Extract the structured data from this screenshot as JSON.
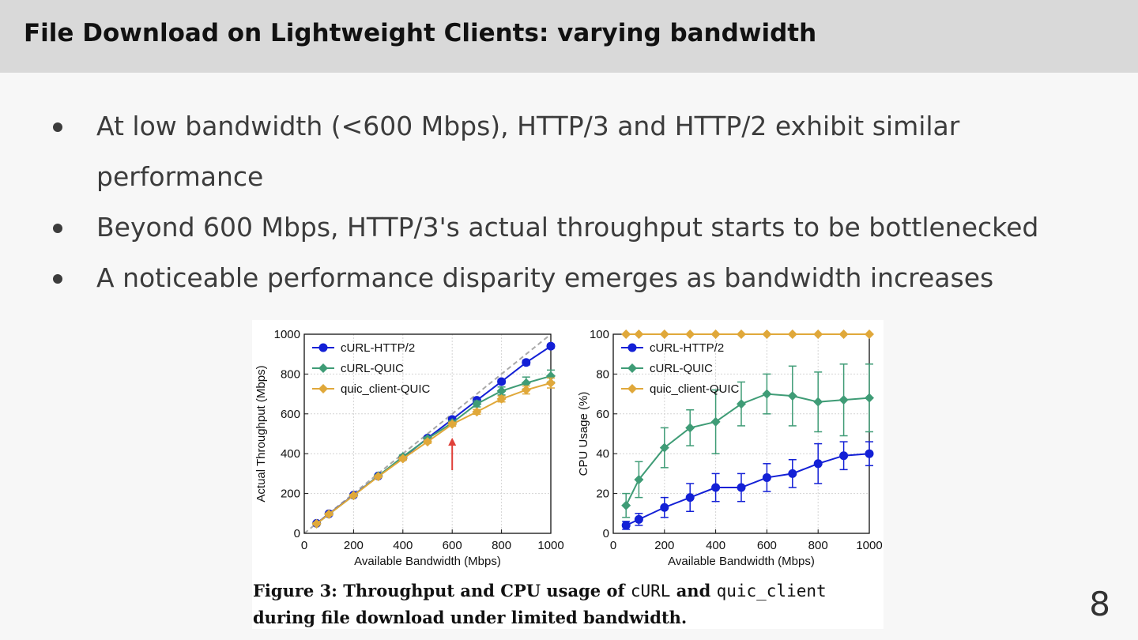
{
  "slide": {
    "title": "File Download on Lightweight Clients: varying bandwidth",
    "bullets": [
      "At low bandwidth (<600 Mbps), HTTP/3 and HTTP/2 exhibit similar performance",
      "Beyond 600 Mbps, HTTP/3's actual throughput starts to be bottlenecked",
      "A noticeable performance disparity emerges as bandwidth increases"
    ],
    "page_number": "8"
  },
  "figure": {
    "caption_part1": "Figure 3: Throughput and CPU usage of ",
    "caption_code1": "cURL",
    "caption_part2": " and ",
    "caption_code2": "quic_client",
    "caption_line2": "during file download under limited bandwidth."
  },
  "colors": {
    "http2": "#1320d6",
    "curl_quic": "#3f9c76",
    "quic_client": "#e0a83a",
    "arrow": "#e0413a"
  },
  "chart_data": [
    {
      "type": "line",
      "xlabel": "Available Bandwidth (Mbps)",
      "ylabel": "Actual Throughput (Mbps)",
      "xlim": [
        0,
        1000
      ],
      "ylim": [
        0,
        1000
      ],
      "xticks": [
        0,
        200,
        400,
        600,
        800,
        1000
      ],
      "yticks": [
        0,
        200,
        400,
        600,
        800,
        1000
      ],
      "grid": true,
      "legend_position": "top-left",
      "reference_line": "y = x (dashed gray)",
      "annotation": "red arrow at 600 Mbps",
      "annotation_x": 600,
      "x": [
        50,
        100,
        200,
        300,
        400,
        500,
        600,
        700,
        800,
        900,
        1000
      ],
      "series": [
        {
          "name": "cURL-HTTP/2",
          "marker": "circle",
          "values": [
            50,
            98,
            192,
            288,
            380,
            478,
            572,
            668,
            762,
            858,
            940
          ],
          "errors": [
            5,
            5,
            5,
            5,
            8,
            8,
            10,
            10,
            10,
            12,
            10
          ]
        },
        {
          "name": "cURL-QUIC",
          "marker": "diamond",
          "values": [
            48,
            96,
            190,
            288,
            385,
            475,
            555,
            650,
            715,
            755,
            790
          ],
          "errors": [
            5,
            5,
            5,
            5,
            8,
            8,
            10,
            15,
            20,
            30,
            30
          ]
        },
        {
          "name": "quic_client-QUIC",
          "marker": "diamond",
          "values": [
            48,
            96,
            190,
            285,
            375,
            460,
            548,
            610,
            675,
            720,
            755
          ],
          "errors": [
            5,
            5,
            5,
            5,
            8,
            8,
            10,
            12,
            15,
            20,
            25
          ]
        }
      ]
    },
    {
      "type": "line",
      "xlabel": "Available Bandwidth (Mbps)",
      "ylabel": "CPU Usage (%)",
      "xlim": [
        0,
        1000
      ],
      "ylim": [
        0,
        100
      ],
      "xticks": [
        0,
        200,
        400,
        600,
        800,
        1000
      ],
      "yticks": [
        0,
        20,
        40,
        60,
        80,
        100
      ],
      "grid": true,
      "legend_position": "top-left",
      "x": [
        50,
        100,
        200,
        300,
        400,
        500,
        600,
        700,
        800,
        900,
        1000
      ],
      "series": [
        {
          "name": "cURL-HTTP/2",
          "marker": "circle",
          "values": [
            4,
            7,
            13,
            18,
            23,
            23,
            28,
            30,
            35,
            39,
            40
          ],
          "errors": [
            2,
            3,
            5,
            7,
            7,
            7,
            7,
            7,
            10,
            7,
            6
          ]
        },
        {
          "name": "cURL-QUIC",
          "marker": "diamond",
          "values": [
            14,
            27,
            43,
            53,
            56,
            65,
            70,
            69,
            66,
            67,
            68
          ],
          "errors": [
            6,
            9,
            10,
            9,
            16,
            11,
            10,
            15,
            15,
            18,
            17
          ]
        },
        {
          "name": "quic_client-QUIC",
          "marker": "diamond",
          "values": [
            100,
            100,
            100,
            100,
            100,
            100,
            100,
            100,
            100,
            100,
            100
          ],
          "errors": [
            0,
            0,
            0,
            0,
            0,
            0,
            0,
            0,
            0,
            0,
            0
          ]
        }
      ]
    }
  ]
}
